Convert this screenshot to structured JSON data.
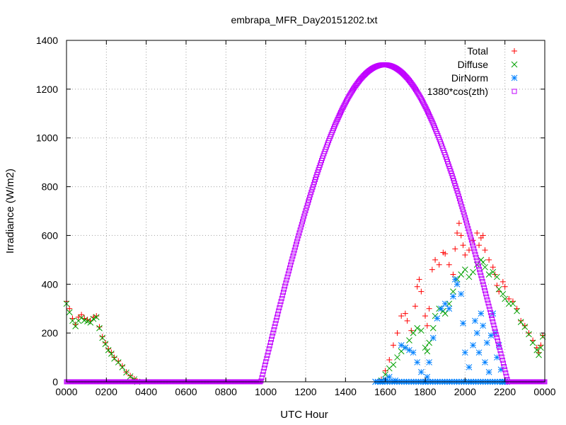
{
  "chart_data": {
    "type": "scatter",
    "title": "embrapa_MFR_Day20151202.txt",
    "xlabel": "UTC Hour",
    "ylabel": "Irradiance (W/m2)",
    "xlim": [
      0,
      24
    ],
    "ylim": [
      0,
      1400
    ],
    "x_ticks": [
      {
        "value": 0,
        "label": "0000"
      },
      {
        "value": 2,
        "label": "0200"
      },
      {
        "value": 4,
        "label": "0400"
      },
      {
        "value": 6,
        "label": "0600"
      },
      {
        "value": 8,
        "label": "0800"
      },
      {
        "value": 10,
        "label": "1000"
      },
      {
        "value": 12,
        "label": "1200"
      },
      {
        "value": 14,
        "label": "1400"
      },
      {
        "value": 16,
        "label": "1600"
      },
      {
        "value": 18,
        "label": "1800"
      },
      {
        "value": 20,
        "label": "2000"
      },
      {
        "value": 22,
        "label": "2200"
      },
      {
        "value": 24,
        "label": "0000"
      }
    ],
    "y_ticks": [
      {
        "value": 0,
        "label": "0"
      },
      {
        "value": 200,
        "label": "200"
      },
      {
        "value": 400,
        "label": "400"
      },
      {
        "value": 600,
        "label": "600"
      },
      {
        "value": 800,
        "label": "800"
      },
      {
        "value": 1000,
        "label": "1000"
      },
      {
        "value": 1200,
        "label": "1200"
      },
      {
        "value": 1400,
        "label": "1400"
      }
    ],
    "grid": true,
    "legend_position": "top-right",
    "series": [
      {
        "name": "Total",
        "marker": "plus",
        "color": "#ff0000",
        "points": [
          [
            0,
            330
          ],
          [
            0.15,
            300
          ],
          [
            0.3,
            260
          ],
          [
            0.45,
            235
          ],
          [
            0.6,
            265
          ],
          [
            0.75,
            275
          ],
          [
            0.9,
            260
          ],
          [
            1.05,
            255
          ],
          [
            1.2,
            250
          ],
          [
            1.35,
            265
          ],
          [
            1.5,
            270
          ],
          [
            1.65,
            225
          ],
          [
            1.8,
            185
          ],
          [
            1.95,
            160
          ],
          [
            2.1,
            135
          ],
          [
            2.25,
            120
          ],
          [
            2.4,
            100
          ],
          [
            2.6,
            85
          ],
          [
            2.8,
            65
          ],
          [
            3.0,
            40
          ],
          [
            3.2,
            25
          ],
          [
            3.4,
            12
          ],
          [
            3.55,
            2
          ],
          [
            15.8,
            10
          ],
          [
            16.0,
            45
          ],
          [
            16.2,
            90
          ],
          [
            16.4,
            150
          ],
          [
            16.6,
            200
          ],
          [
            16.8,
            270
          ],
          [
            17.0,
            280
          ],
          [
            17.1,
            250
          ],
          [
            17.3,
            210
          ],
          [
            17.5,
            310
          ],
          [
            17.6,
            390
          ],
          [
            17.7,
            420
          ],
          [
            17.8,
            370
          ],
          [
            18.0,
            270
          ],
          [
            18.1,
            230
          ],
          [
            18.2,
            300
          ],
          [
            18.35,
            460
          ],
          [
            18.5,
            500
          ],
          [
            18.7,
            480
          ],
          [
            18.9,
            530
          ],
          [
            19.0,
            525
          ],
          [
            19.2,
            480
          ],
          [
            19.4,
            440
          ],
          [
            19.5,
            545
          ],
          [
            19.6,
            610
          ],
          [
            19.7,
            650
          ],
          [
            19.8,
            600
          ],
          [
            19.9,
            560
          ],
          [
            20.0,
            520
          ],
          [
            20.2,
            540
          ],
          [
            20.4,
            580
          ],
          [
            20.6,
            610
          ],
          [
            20.7,
            560
          ],
          [
            20.8,
            590
          ],
          [
            20.9,
            600
          ],
          [
            21.0,
            540
          ],
          [
            21.2,
            500
          ],
          [
            21.4,
            470
          ],
          [
            21.5,
            440
          ],
          [
            21.6,
            395
          ],
          [
            21.7,
            370
          ],
          [
            21.9,
            410
          ],
          [
            22.0,
            390
          ],
          [
            22.2,
            340
          ],
          [
            22.4,
            330
          ],
          [
            22.6,
            300
          ],
          [
            22.8,
            250
          ],
          [
            23.0,
            230
          ],
          [
            23.2,
            200
          ],
          [
            23.4,
            170
          ],
          [
            23.6,
            140
          ],
          [
            23.7,
            120
          ],
          [
            23.8,
            150
          ],
          [
            23.9,
            190
          ]
        ]
      },
      {
        "name": "Diffuse",
        "marker": "cross",
        "color": "#00a000",
        "points": [
          [
            0,
            320
          ],
          [
            0.15,
            285
          ],
          [
            0.3,
            250
          ],
          [
            0.45,
            228
          ],
          [
            0.6,
            250
          ],
          [
            0.75,
            262
          ],
          [
            0.9,
            252
          ],
          [
            1.05,
            248
          ],
          [
            1.2,
            243
          ],
          [
            1.35,
            258
          ],
          [
            1.5,
            265
          ],
          [
            1.65,
            220
          ],
          [
            1.8,
            180
          ],
          [
            1.95,
            155
          ],
          [
            2.1,
            130
          ],
          [
            2.25,
            115
          ],
          [
            2.4,
            95
          ],
          [
            2.6,
            80
          ],
          [
            2.8,
            60
          ],
          [
            3.0,
            38
          ],
          [
            3.2,
            22
          ],
          [
            3.4,
            10
          ],
          [
            3.55,
            0
          ],
          [
            15.8,
            5
          ],
          [
            16.0,
            30
          ],
          [
            16.2,
            55
          ],
          [
            16.4,
            70
          ],
          [
            16.6,
            100
          ],
          [
            16.8,
            125
          ],
          [
            17.0,
            140
          ],
          [
            17.2,
            170
          ],
          [
            17.4,
            200
          ],
          [
            17.6,
            220
          ],
          [
            17.8,
            210
          ],
          [
            18.0,
            140
          ],
          [
            18.1,
            125
          ],
          [
            18.2,
            160
          ],
          [
            18.4,
            220
          ],
          [
            18.5,
            270
          ],
          [
            18.7,
            300
          ],
          [
            18.9,
            290
          ],
          [
            19.0,
            280
          ],
          [
            19.2,
            320
          ],
          [
            19.4,
            370
          ],
          [
            19.6,
            420
          ],
          [
            19.8,
            440
          ],
          [
            20.0,
            460
          ],
          [
            20.2,
            430
          ],
          [
            20.4,
            450
          ],
          [
            20.6,
            480
          ],
          [
            20.8,
            500
          ],
          [
            20.9,
            490
          ],
          [
            21.0,
            470
          ],
          [
            21.2,
            440
          ],
          [
            21.4,
            450
          ],
          [
            21.6,
            430
          ],
          [
            21.7,
            380
          ],
          [
            21.9,
            360
          ],
          [
            22.0,
            340
          ],
          [
            22.2,
            320
          ],
          [
            22.4,
            320
          ],
          [
            22.6,
            290
          ],
          [
            22.8,
            245
          ],
          [
            23.0,
            225
          ],
          [
            23.2,
            195
          ],
          [
            23.4,
            160
          ],
          [
            23.6,
            130
          ],
          [
            23.7,
            110
          ],
          [
            23.8,
            140
          ],
          [
            23.9,
            185
          ]
        ]
      },
      {
        "name": "DirNorm",
        "marker": "star",
        "color": "#0080ff",
        "points": [
          [
            15.5,
            0
          ],
          [
            15.8,
            2
          ],
          [
            16.0,
            10
          ],
          [
            16.2,
            20
          ],
          [
            16.5,
            5
          ],
          [
            16.8,
            150
          ],
          [
            17.0,
            140
          ],
          [
            17.2,
            130
          ],
          [
            17.4,
            120
          ],
          [
            17.6,
            80
          ],
          [
            17.8,
            40
          ],
          [
            18.0,
            0
          ],
          [
            18.1,
            20
          ],
          [
            18.2,
            80
          ],
          [
            18.4,
            180
          ],
          [
            18.6,
            260
          ],
          [
            18.8,
            300
          ],
          [
            19.0,
            320
          ],
          [
            19.2,
            300
          ],
          [
            19.4,
            350
          ],
          [
            19.5,
            420
          ],
          [
            19.6,
            400
          ],
          [
            19.8,
            360
          ],
          [
            19.9,
            240
          ],
          [
            20.0,
            120
          ],
          [
            20.2,
            60
          ],
          [
            20.3,
            0
          ],
          [
            20.4,
            150
          ],
          [
            20.5,
            250
          ],
          [
            20.6,
            200
          ],
          [
            20.7,
            120
          ],
          [
            20.8,
            280
          ],
          [
            20.9,
            230
          ],
          [
            21.0,
            80
          ],
          [
            21.1,
            160
          ],
          [
            21.2,
            40
          ],
          [
            21.3,
            190
          ],
          [
            21.4,
            280
          ],
          [
            21.5,
            200
          ],
          [
            21.6,
            100
          ],
          [
            21.7,
            150
          ],
          [
            21.8,
            50
          ],
          [
            21.9,
            0
          ],
          [
            22.0,
            0
          ]
        ]
      },
      {
        "name": "1380*cos(zth)",
        "marker": "square",
        "color": "#c000ff",
        "curve": {
          "sunrise": 9.75,
          "peak_hour": 15.95,
          "peak_value": 1300,
          "sunset": 22.15
        }
      }
    ]
  }
}
